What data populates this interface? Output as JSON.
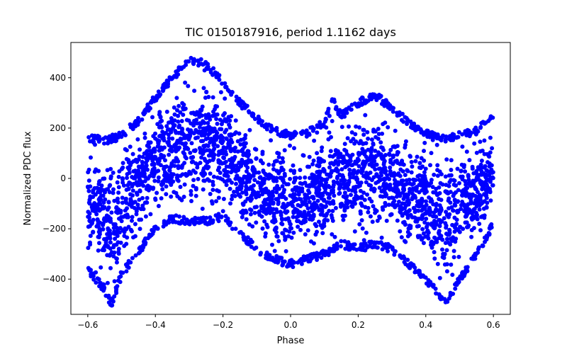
{
  "chart_data": {
    "type": "scatter",
    "title": "TIC 0150187916, period 1.1162 days",
    "xlabel": "Phase",
    "ylabel": "Normalized PDC flux",
    "xlim": [
      -0.65,
      0.65
    ],
    "ylim": [
      -540,
      540
    ],
    "xticks": [
      -0.6,
      -0.4,
      -0.2,
      0.0,
      0.2,
      0.4,
      0.6
    ],
    "xtick_labels": [
      "−0.6",
      "−0.4",
      "−0.2",
      "0.0",
      "0.2",
      "0.4",
      "0.6"
    ],
    "yticks": [
      -400,
      -200,
      0,
      200,
      400
    ],
    "ytick_labels": [
      "−400",
      "−200",
      "0",
      "200",
      "400"
    ],
    "marker_color": "#0000ff",
    "grid": false,
    "series": [
      {
        "name": "flux",
        "envelope_upper": [
          {
            "x": -0.6,
            "y": 160
          },
          {
            "x": -0.55,
            "y": 150
          },
          {
            "x": -0.5,
            "y": 170
          },
          {
            "x": -0.45,
            "y": 230
          },
          {
            "x": -0.4,
            "y": 320
          },
          {
            "x": -0.35,
            "y": 400
          },
          {
            "x": -0.3,
            "y": 470
          },
          {
            "x": -0.25,
            "y": 455
          },
          {
            "x": -0.2,
            "y": 380
          },
          {
            "x": -0.15,
            "y": 300
          },
          {
            "x": -0.1,
            "y": 240
          },
          {
            "x": -0.05,
            "y": 190
          },
          {
            "x": 0.0,
            "y": 170
          },
          {
            "x": 0.05,
            "y": 180
          },
          {
            "x": 0.1,
            "y": 220
          },
          {
            "x": 0.12,
            "y": 320
          },
          {
            "x": 0.15,
            "y": 250
          },
          {
            "x": 0.2,
            "y": 300
          },
          {
            "x": 0.25,
            "y": 330
          },
          {
            "x": 0.3,
            "y": 280
          },
          {
            "x": 0.35,
            "y": 220
          },
          {
            "x": 0.4,
            "y": 180
          },
          {
            "x": 0.45,
            "y": 160
          },
          {
            "x": 0.5,
            "y": 170
          },
          {
            "x": 0.55,
            "y": 190
          },
          {
            "x": 0.6,
            "y": 250
          }
        ],
        "envelope_lower": [
          {
            "x": -0.6,
            "y": -360
          },
          {
            "x": -0.55,
            "y": -440
          },
          {
            "x": -0.53,
            "y": -500
          },
          {
            "x": -0.5,
            "y": -380
          },
          {
            "x": -0.45,
            "y": -290
          },
          {
            "x": -0.4,
            "y": -200
          },
          {
            "x": -0.35,
            "y": -160
          },
          {
            "x": -0.3,
            "y": -170
          },
          {
            "x": -0.25,
            "y": -170
          },
          {
            "x": -0.2,
            "y": -150
          },
          {
            "x": -0.15,
            "y": -220
          },
          {
            "x": -0.1,
            "y": -280
          },
          {
            "x": -0.05,
            "y": -320
          },
          {
            "x": 0.0,
            "y": -340
          },
          {
            "x": 0.05,
            "y": -320
          },
          {
            "x": 0.1,
            "y": -300
          },
          {
            "x": 0.15,
            "y": -260
          },
          {
            "x": 0.2,
            "y": -280
          },
          {
            "x": 0.25,
            "y": -260
          },
          {
            "x": 0.3,
            "y": -280
          },
          {
            "x": 0.35,
            "y": -340
          },
          {
            "x": 0.4,
            "y": -400
          },
          {
            "x": 0.46,
            "y": -500
          },
          {
            "x": 0.5,
            "y": -400
          },
          {
            "x": 0.55,
            "y": -300
          },
          {
            "x": 0.6,
            "y": -180
          }
        ]
      }
    ]
  }
}
